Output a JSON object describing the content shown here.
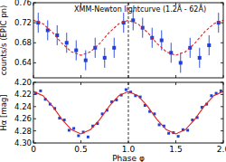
{
  "chart_data": [
    {
      "type": "scatter",
      "title": "XMM-Newton lightcurve (1.2Å - 62Å)",
      "y_label": "counts/s (EPIC pn)",
      "xlim": [
        0,
        2
      ],
      "ylim": [
        0.61,
        0.76
      ],
      "xticks": [
        0,
        0.5,
        {
          "value": 1,
          "label": "1.0"
        },
        1.5,
        {
          "value": 2,
          "label": "2.0"
        }
      ],
      "yticks": [
        0.64,
        0.68,
        0.72,
        0.76
      ],
      "tick_labels": "y",
      "vlines": [
        1
      ],
      "series": [
        {
          "type": "scatter",
          "marker": "square",
          "color": "#1f3fd8",
          "x": [
            0.05,
            0.15,
            0.25,
            0.35,
            0.45,
            0.55,
            0.65,
            0.75,
            0.85,
            0.95,
            1.05,
            1.15,
            1.25,
            1.35,
            1.45,
            1.55,
            1.65,
            1.75,
            1.85,
            1.95
          ],
          "values": [
            0.72,
            0.705,
            0.695,
            0.68,
            0.665,
            0.645,
            0.67,
            0.65,
            0.67,
            0.72,
            0.725,
            0.71,
            0.69,
            0.685,
            0.66,
            0.64,
            0.67,
            0.65,
            0.675,
            0.72
          ],
          "errors": [
            0.02,
            0.02,
            0.02,
            0.02,
            0.02,
            0.02,
            0.02,
            0.02,
            0.02,
            0.02,
            0.02,
            0.02,
            0.02,
            0.02,
            0.02,
            0.02,
            0.02,
            0.02,
            0.02,
            0.02
          ]
        },
        {
          "type": "line",
          "line_style": "dashed",
          "color": "#e02020",
          "x": [
            0,
            0.1,
            0.2,
            0.3,
            0.4,
            0.5,
            0.6,
            0.7,
            0.8,
            0.9,
            1,
            1.1,
            1.2,
            1.3,
            1.4,
            1.5,
            1.6,
            1.7,
            1.8,
            1.9,
            2
          ],
          "values": [
            0.725,
            0.718,
            0.701,
            0.679,
            0.662,
            0.655,
            0.662,
            0.679,
            0.701,
            0.718,
            0.725,
            0.718,
            0.701,
            0.679,
            0.662,
            0.655,
            0.662,
            0.679,
            0.701,
            0.718,
            0.725
          ]
        }
      ]
    },
    {
      "type": "scatter",
      "x_label": "Phase φ",
      "y_label": "Hα [mag]",
      "xlim": [
        0,
        2
      ],
      "ylim": [
        4.3,
        4.2
      ],
      "xticks": [
        0,
        0.5,
        {
          "value": 1,
          "label": "1.0"
        },
        1.5,
        {
          "value": 2,
          "label": "2.0"
        }
      ],
      "yticks": [
        {
          "value": 4.2,
          "label": "4.20"
        },
        4.22,
        4.24,
        4.26,
        4.28,
        {
          "value": 4.3,
          "label": "4.30"
        }
      ],
      "vlines": [
        1
      ],
      "series": [
        {
          "type": "scatter",
          "marker": "square",
          "color": "#1f3fd8",
          "x": [
            0.025,
            0.075,
            0.125,
            0.175,
            0.225,
            0.275,
            0.325,
            0.375,
            0.425,
            0.475,
            0.525,
            0.575,
            0.625,
            0.675,
            0.725,
            0.775,
            0.825,
            0.875,
            0.925,
            0.975,
            1.025,
            1.075,
            1.125,
            1.175,
            1.225,
            1.275,
            1.325,
            1.375,
            1.425,
            1.475,
            1.525,
            1.575,
            1.625,
            1.675,
            1.725,
            1.775,
            1.825,
            1.875,
            1.925,
            1.975
          ],
          "values": [
            4.218,
            4.214,
            4.228,
            4.236,
            4.243,
            4.259,
            4.262,
            4.279,
            4.276,
            4.288,
            4.282,
            4.29,
            4.272,
            4.268,
            4.252,
            4.246,
            4.232,
            4.229,
            4.221,
            4.212,
            4.216,
            4.222,
            4.224,
            4.238,
            4.248,
            4.252,
            4.27,
            4.272,
            4.284,
            4.283,
            4.289,
            4.278,
            4.279,
            4.262,
            4.258,
            4.241,
            4.236,
            4.222,
            4.218,
            4.214
          ]
        },
        {
          "type": "line",
          "line_style": "solid",
          "color": "#e02020",
          "x": [
            0,
            0.1,
            0.2,
            0.3,
            0.4,
            0.5,
            0.6,
            0.7,
            0.8,
            0.9,
            1,
            1.1,
            1.2,
            1.3,
            1.4,
            1.5,
            1.6,
            1.7,
            1.8,
            1.9,
            2
          ],
          "values": [
            4.215,
            4.222,
            4.239,
            4.261,
            4.278,
            4.285,
            4.278,
            4.261,
            4.239,
            4.222,
            4.215,
            4.222,
            4.239,
            4.261,
            4.278,
            4.285,
            4.278,
            4.261,
            4.239,
            4.222,
            4.215
          ]
        }
      ]
    }
  ]
}
